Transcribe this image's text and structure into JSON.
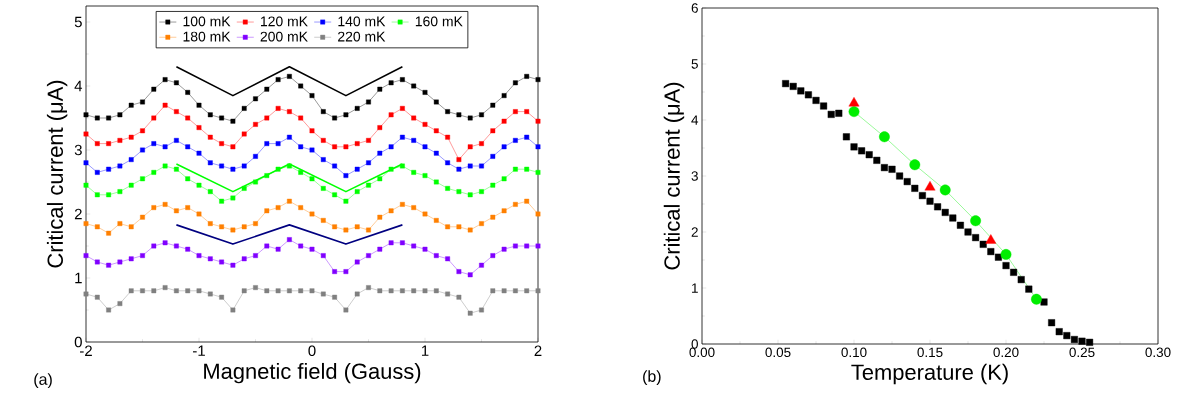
{
  "chart_data": [
    {
      "type": "line",
      "xlabel": "Magnetic field (Gauss)",
      "ylabel": "Critical current (μA)",
      "annotations": [
        "(a)"
      ],
      "x": [
        -2,
        -1.9,
        -1.8,
        -1.7,
        -1.6,
        -1.5,
        -1.4,
        -1.3,
        -1.2,
        -1.1,
        -1.0,
        -0.9,
        -0.8,
        -0.7,
        -0.6,
        -0.5,
        -0.4,
        -0.3,
        -0.2,
        -0.1,
        0,
        0.1,
        0.2,
        0.3,
        0.4,
        0.5,
        0.6,
        0.7,
        0.8,
        0.9,
        1.0,
        1.1,
        1.2,
        1.3,
        1.4,
        1.5,
        1.6,
        1.7,
        1.8,
        1.9,
        2.0
      ],
      "xlim": [
        -2,
        2
      ],
      "xticks": [
        -2,
        -1,
        0,
        1,
        2
      ],
      "ylim": [
        0,
        5.25
      ],
      "yticks": [
        0,
        1,
        2,
        3,
        4,
        5
      ],
      "legend": "top",
      "marker": "square",
      "series": [
        {
          "name": "100 mK",
          "color": "#000000",
          "values": [
            3.55,
            3.5,
            3.5,
            3.55,
            3.7,
            3.75,
            3.95,
            4.1,
            4.05,
            3.9,
            3.7,
            3.55,
            3.5,
            3.45,
            3.65,
            3.8,
            3.95,
            4.1,
            4.15,
            4.0,
            3.85,
            3.6,
            3.5,
            3.55,
            3.65,
            3.75,
            3.95,
            4.05,
            4.1,
            4.0,
            3.9,
            3.75,
            3.6,
            3.55,
            3.5,
            3.55,
            3.7,
            3.85,
            4.05,
            4.15,
            4.1
          ]
        },
        {
          "name": "120 mK",
          "color": "#ff0000",
          "values": [
            3.25,
            3.1,
            3.1,
            3.15,
            3.2,
            3.3,
            3.5,
            3.7,
            3.6,
            3.5,
            3.35,
            3.2,
            3.1,
            3.05,
            3.25,
            3.4,
            3.5,
            3.65,
            3.6,
            3.5,
            3.3,
            3.15,
            3.05,
            3.05,
            3.1,
            3.15,
            3.35,
            3.55,
            3.65,
            3.5,
            3.4,
            3.3,
            3.2,
            2.85,
            3.05,
            3.1,
            3.3,
            3.45,
            3.6,
            3.6,
            3.45
          ]
        },
        {
          "name": "140 mK",
          "color": "#0000ff",
          "values": [
            2.8,
            2.65,
            2.7,
            2.75,
            2.85,
            3.0,
            3.1,
            3.05,
            3.15,
            3.05,
            2.95,
            2.8,
            2.75,
            2.7,
            2.75,
            2.9,
            3.1,
            3.1,
            3.2,
            3.05,
            3.0,
            2.85,
            2.75,
            2.6,
            2.7,
            2.8,
            2.95,
            3.05,
            3.2,
            3.15,
            3.05,
            2.95,
            2.8,
            2.7,
            2.75,
            2.75,
            2.9,
            3.05,
            3.15,
            3.2,
            3.05
          ]
        },
        {
          "name": "160 mK",
          "color": "#00ff00",
          "values": [
            2.45,
            2.3,
            2.3,
            2.35,
            2.45,
            2.55,
            2.65,
            2.75,
            2.7,
            2.55,
            2.45,
            2.35,
            2.2,
            2.25,
            2.4,
            2.5,
            2.6,
            2.7,
            2.75,
            2.65,
            2.55,
            2.4,
            2.3,
            2.2,
            2.35,
            2.45,
            2.55,
            2.7,
            2.75,
            2.65,
            2.6,
            2.5,
            2.4,
            2.35,
            2.3,
            2.35,
            2.45,
            2.55,
            2.7,
            2.7,
            2.65
          ]
        },
        {
          "name": "180 mK",
          "color": "#ff8000",
          "values": [
            1.85,
            1.8,
            1.7,
            1.85,
            1.8,
            1.95,
            2.1,
            2.15,
            2.05,
            2.1,
            2.0,
            1.85,
            1.8,
            1.75,
            1.8,
            1.85,
            2.05,
            2.1,
            2.2,
            2.1,
            2.0,
            1.9,
            1.8,
            1.75,
            1.8,
            1.75,
            1.95,
            2.05,
            2.15,
            2.1,
            2.0,
            1.9,
            1.8,
            1.8,
            1.75,
            1.85,
            1.95,
            2.05,
            2.15,
            2.2,
            2.0
          ]
        },
        {
          "name": "200 mK",
          "color": "#8000ff",
          "values": [
            1.35,
            1.25,
            1.2,
            1.25,
            1.3,
            1.35,
            1.5,
            1.55,
            1.5,
            1.45,
            1.35,
            1.3,
            1.25,
            1.2,
            1.3,
            1.35,
            1.5,
            1.45,
            1.6,
            1.5,
            1.45,
            1.35,
            1.1,
            1.1,
            1.25,
            1.35,
            1.45,
            1.55,
            1.55,
            1.5,
            1.45,
            1.35,
            1.3,
            1.1,
            1.05,
            1.2,
            1.35,
            1.45,
            1.5,
            1.5,
            1.5
          ]
        },
        {
          "name": "220 mK",
          "color": "#808080",
          "values": [
            0.75,
            0.7,
            0.5,
            0.6,
            0.8,
            0.8,
            0.8,
            0.85,
            0.8,
            0.8,
            0.8,
            0.75,
            0.7,
            0.5,
            0.8,
            0.85,
            0.8,
            0.8,
            0.8,
            0.8,
            0.8,
            0.75,
            0.7,
            0.5,
            0.75,
            0.85,
            0.8,
            0.8,
            0.8,
            0.8,
            0.8,
            0.8,
            0.75,
            0.7,
            0.45,
            0.5,
            0.8,
            0.8,
            0.8,
            0.8,
            0.8
          ]
        },
        {
          "type": "line",
          "marker": "none",
          "color": "#000000",
          "x": [
            -1.2,
            -0.7,
            -0.2,
            0.3,
            0.8
          ],
          "values": [
            4.3,
            3.85,
            4.3,
            3.85,
            4.3
          ]
        },
        {
          "type": "line",
          "marker": "none",
          "color": "#00ff00",
          "x": [
            -1.2,
            -0.7,
            -0.2,
            0.3,
            0.8
          ],
          "values": [
            2.78,
            2.35,
            2.78,
            2.35,
            2.78
          ]
        },
        {
          "type": "line",
          "marker": "none",
          "color": "#000080",
          "x": [
            -1.2,
            -0.7,
            -0.2,
            0.3,
            0.8
          ],
          "values": [
            1.83,
            1.53,
            1.83,
            1.53,
            1.83
          ]
        }
      ]
    },
    {
      "type": "scatter",
      "xlabel": "Temperature (K)",
      "ylabel": "Critical current (μA)",
      "annotations": [
        "(b)"
      ],
      "xlim": [
        0,
        0.3
      ],
      "xticks": [
        {
          "value": 0,
          "label": "0.00"
        },
        {
          "value": 0.05,
          "label": "0.05"
        },
        {
          "value": 0.1,
          "label": "0.10"
        },
        {
          "value": 0.15,
          "label": "0.15"
        },
        {
          "value": 0.2,
          "label": "0.20"
        },
        {
          "value": 0.25,
          "label": "0.25"
        },
        {
          "value": 0.3,
          "label": "0.30"
        }
      ],
      "ylim": [
        0,
        6
      ],
      "yticks": [
        0,
        1,
        2,
        3,
        4,
        5,
        6
      ],
      "series": [
        {
          "type": "scatter",
          "marker": "square",
          "color": "#000000",
          "x": [
            0.055,
            0.06,
            0.065,
            0.07,
            0.075,
            0.08,
            0.085,
            0.09,
            0.095,
            0.1,
            0.105,
            0.11,
            0.115,
            0.12,
            0.125,
            0.13,
            0.135,
            0.14,
            0.145,
            0.15,
            0.155,
            0.16,
            0.165,
            0.17,
            0.175,
            0.18,
            0.185,
            0.19,
            0.195,
            0.2,
            0.205,
            0.21,
            0.215,
            0.22,
            0.225,
            0.23,
            0.235,
            0.24,
            0.245,
            0.25,
            0.255
          ],
          "values": [
            4.65,
            4.6,
            4.52,
            4.45,
            4.35,
            4.25,
            4.1,
            4.12,
            3.7,
            3.52,
            3.45,
            3.38,
            3.28,
            3.15,
            3.12,
            3.0,
            2.9,
            2.78,
            2.65,
            2.55,
            2.45,
            2.35,
            2.25,
            2.12,
            2.0,
            1.9,
            1.78,
            1.65,
            1.55,
            1.4,
            1.28,
            1.15,
            0.98,
            null,
            0.75,
            0.38,
            0.22,
            0.15,
            0.08,
            0.05,
            0.03
          ]
        },
        {
          "type": "line",
          "marker": "circle",
          "color": "#00ee00",
          "x": [
            0.1,
            0.12,
            0.14,
            0.16,
            0.18,
            0.2,
            0.22
          ],
          "values": [
            4.15,
            3.7,
            3.2,
            2.75,
            2.2,
            1.6,
            0.8
          ]
        },
        {
          "type": "scatter",
          "marker": "triangle",
          "color": "#ff0000",
          "x": [
            0.1,
            0.15,
            0.19
          ],
          "values": [
            4.3,
            2.8,
            1.85
          ]
        }
      ]
    }
  ]
}
